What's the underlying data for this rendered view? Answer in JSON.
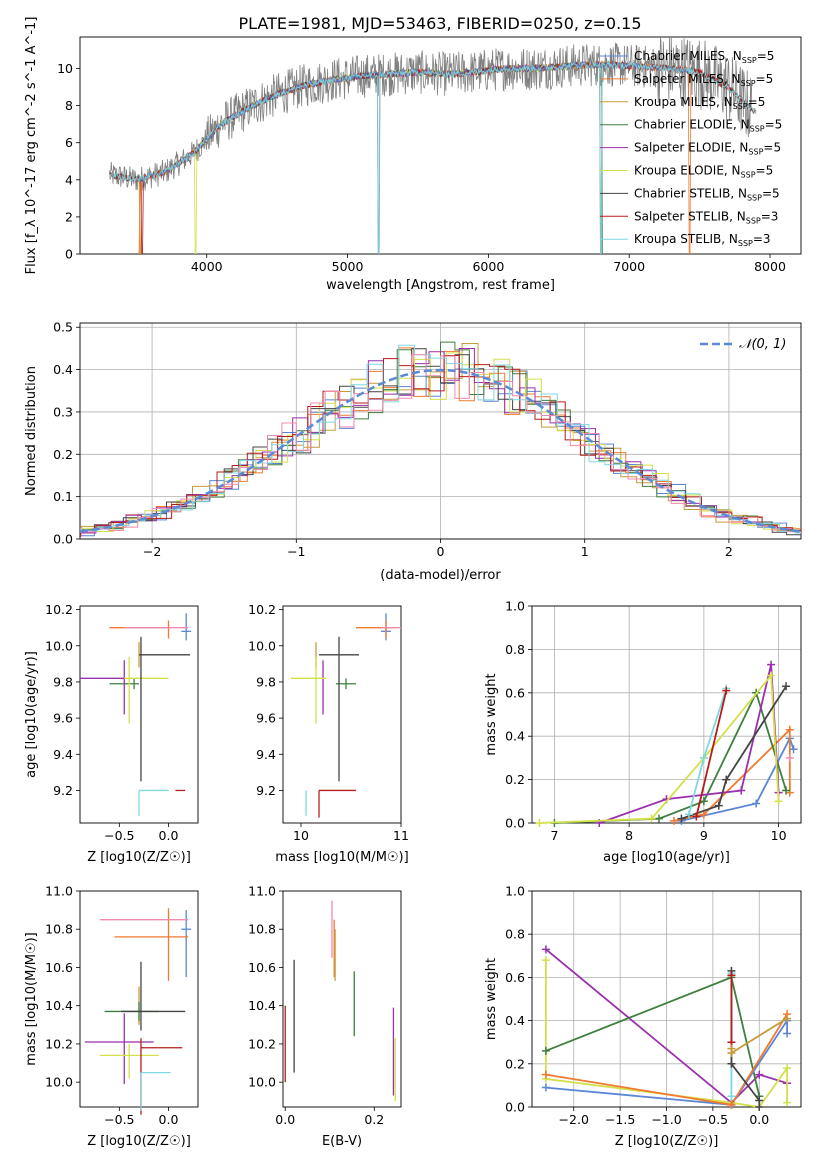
{
  "figure_title": "PLATE=1981, MJD=53463, FIBERID=0250, z=0.15",
  "colors": {
    "Chabrier MILES": "#5b86d6",
    "Salpeter MILES": "#f07a30",
    "Kroupa MILES": "#c89a3a",
    "Chabrier ELODIE": "#3f7f3f",
    "Salpeter ELODIE": "#9b2fae",
    "Kroupa ELODIE": "#d4e04a",
    "Chabrier STELIB": "#444444",
    "Salpeter STELIB": "#b71c1c",
    "Kroupa STELIB": "#7fd8e0",
    "data": "#808080",
    "pink": "#f28ab0",
    "normal_curve": "#5b8bd6"
  },
  "chart_data": [
    {
      "id": "spectrum",
      "type": "line",
      "title": "PLATE=1981, MJD=53463, FIBERID=0250, z=0.15",
      "xlabel": "wavelength [Angstrom, rest frame]",
      "ylabel": "Flux [f_λ 10^-17 erg cm^-2 s^-1 A^-1]",
      "xlim": [
        3100,
        8220
      ],
      "ylim": [
        0,
        11.7
      ],
      "xticks": [
        "4000",
        "5000",
        "6000",
        "7000",
        "8000"
      ],
      "yticks": [
        "0",
        "2",
        "4",
        "6",
        "8",
        "10"
      ],
      "legend_position": "right",
      "series": [
        {
          "name": "Chabrier MILES, N_SSP=5"
        },
        {
          "name": "Salpeter MILES, N_SSP=5"
        },
        {
          "name": "Kroupa MILES, N_SSP=5"
        },
        {
          "name": "Chabrier ELODIE, N_SSP=5"
        },
        {
          "name": "Salpeter ELODIE, N_SSP=5"
        },
        {
          "name": "Kroupa ELODIE, N_SSP=5"
        },
        {
          "name": "Chabrier STELIB, N_SSP=5"
        },
        {
          "name": "Salpeter STELIB, N_SSP=3"
        },
        {
          "name": "Kroupa STELIB, N_SSP=3"
        }
      ],
      "continuum": {
        "x": [
          3300,
          3500,
          3700,
          3900,
          4100,
          4300,
          4500,
          4700,
          4900,
          5100,
          5300,
          5500,
          5700,
          5900,
          6100,
          6300,
          6500,
          6700,
          6900,
          7100,
          7300,
          7500,
          7700,
          7900
        ],
        "y": [
          4.3,
          4.0,
          4.4,
          5.4,
          7.0,
          7.9,
          8.6,
          9.1,
          9.4,
          9.6,
          9.7,
          9.8,
          9.7,
          9.8,
          10.0,
          10.0,
          10.1,
          10.2,
          10.2,
          10.1,
          10.0,
          9.8,
          9.0,
          7.6
        ]
      }
    },
    {
      "id": "residuals",
      "type": "line",
      "xlabel": "(data-model)/error",
      "ylabel": "Normed distribution",
      "xlim": [
        -2.5,
        2.5
      ],
      "ylim": [
        0,
        0.51
      ],
      "xticks": [
        "−2",
        "−1",
        "0",
        "1",
        "2"
      ],
      "yticks": [
        "0.0",
        "0.1",
        "0.2",
        "0.3",
        "0.4",
        "0.5"
      ],
      "grid": true,
      "legend": "𝒩(0, 1)",
      "legend_position": "upper right"
    },
    {
      "id": "age_vs_Z",
      "type": "scatter",
      "xlabel": "Z [log10(Z/Z☉)]",
      "ylabel": "age [log10(age/yr)]",
      "xlim": [
        -0.9,
        0.3
      ],
      "ylim": [
        9.02,
        10.22
      ],
      "xticks": [
        "−0.5",
        "0.0"
      ],
      "yticks": [
        "9.2",
        "9.4",
        "9.6",
        "9.8",
        "10.0",
        "10.2"
      ],
      "points": [
        {
          "s": "Chabrier MILES",
          "x": 0.18,
          "y": 10.08,
          "ex": [
            0.05,
            0.05
          ],
          "ey": [
            0.05,
            0.1
          ]
        },
        {
          "s": "Salpeter MILES",
          "x": 0.0,
          "y": 10.1,
          "ex": [
            0.6,
            0.0
          ],
          "ey": [
            0.06,
            0.04
          ]
        },
        {
          "s": "Kroupa MILES",
          "x": -0.3,
          "y": 9.98,
          "ex": [
            0.0,
            0.0
          ],
          "ey": [
            0.1,
            0.04
          ]
        },
        {
          "s": "Chabrier ELODIE",
          "x": -0.35,
          "y": 9.79,
          "ex": [
            0.25,
            0.05
          ],
          "ey": [
            0.03,
            0.03
          ]
        },
        {
          "s": "Salpeter ELODIE",
          "x": -0.45,
          "y": 9.82,
          "ex": [
            0.45,
            0.0
          ],
          "ey": [
            0.2,
            0.1
          ]
        },
        {
          "s": "Kroupa ELODIE",
          "x": -0.4,
          "y": 9.82,
          "ex": [
            0.05,
            0.4
          ],
          "ey": [
            0.25,
            0.12
          ]
        },
        {
          "s": "Chabrier STELIB",
          "x": -0.28,
          "y": 9.95,
          "ex": [
            0.02,
            0.5
          ],
          "ey": [
            0.7,
            0.1
          ]
        },
        {
          "s": "Salpeter STELIB",
          "x": 0.12,
          "y": 9.2,
          "ex": [
            0.05,
            0.05
          ],
          "ey": [
            0.0,
            0.0
          ]
        },
        {
          "s": "Kroupa STELIB",
          "x": -0.3,
          "y": 9.2,
          "ex": [
            0.0,
            0.3
          ],
          "ey": [
            0.14,
            0.0
          ]
        },
        {
          "s": "pink",
          "x": -0.1,
          "y": 10.1,
          "ex": [
            0.35,
            0.3
          ],
          "ey": [
            0.0,
            0.0
          ]
        }
      ]
    },
    {
      "id": "age_vs_mass",
      "type": "scatter",
      "xlabel": "mass [log10(M/M☉)]",
      "ylabel": "",
      "xlim": [
        9.82,
        11.0
      ],
      "ylim": [
        9.02,
        10.22
      ],
      "xticks": [
        "10",
        "11"
      ],
      "yticks": [
        "9.2",
        "9.4",
        "9.6",
        "9.8",
        "10.0",
        "10.2"
      ],
      "points": [
        {
          "s": "Chabrier MILES",
          "x": 10.85,
          "y": 10.08,
          "ex": [
            0.05,
            0.05
          ],
          "ey": [
            0.05,
            0.1
          ]
        },
        {
          "s": "Salpeter MILES",
          "x": 10.85,
          "y": 10.1,
          "ex": [
            0.3,
            0.1
          ],
          "ey": [
            0.06,
            0.04
          ]
        },
        {
          "s": "Kroupa MILES",
          "x": 10.15,
          "y": 9.98,
          "ex": [
            0.0,
            0.0
          ],
          "ey": [
            0.1,
            0.04
          ]
        },
        {
          "s": "Chabrier ELODIE",
          "x": 10.45,
          "y": 9.79,
          "ex": [
            0.1,
            0.1
          ],
          "ey": [
            0.03,
            0.03
          ]
        },
        {
          "s": "Salpeter ELODIE",
          "x": 10.22,
          "y": 9.82,
          "ex": [
            0.0,
            0.0
          ],
          "ey": [
            0.2,
            0.1
          ]
        },
        {
          "s": "Kroupa ELODIE",
          "x": 10.15,
          "y": 9.82,
          "ex": [
            0.25,
            0.1
          ],
          "ey": [
            0.25,
            0.12
          ]
        },
        {
          "s": "Chabrier STELIB",
          "x": 10.38,
          "y": 9.95,
          "ex": [
            0.2,
            0.2
          ],
          "ey": [
            0.7,
            0.1
          ]
        },
        {
          "s": "Salpeter STELIB",
          "x": 10.18,
          "y": 9.2,
          "ex": [
            0.0,
            0.37
          ],
          "ey": [
            0.15,
            0.0
          ]
        },
        {
          "s": "Kroupa STELIB",
          "x": 10.05,
          "y": 9.2,
          "ex": [
            0.0,
            0.0
          ],
          "ey": [
            0.14,
            0.0
          ]
        },
        {
          "s": "pink",
          "x": 10.8,
          "y": 10.1,
          "ex": [
            0.0,
            0.2
          ],
          "ey": [
            0.0,
            0.0
          ]
        }
      ]
    },
    {
      "id": "weight_vs_age",
      "type": "line",
      "xlabel": "age [log10(age/yr)]",
      "ylabel": "mass weight",
      "xlim": [
        6.7,
        10.3
      ],
      "ylim": [
        0,
        1.0
      ],
      "xticks": [
        "7",
        "8",
        "9",
        "10"
      ],
      "yticks": [
        "0.0",
        "0.2",
        "0.4",
        "0.6",
        "0.8",
        "1.0"
      ],
      "grid": true,
      "series": [
        {
          "s": "Chabrier MILES",
          "x": [
            8.7,
            9.7,
            10.15,
            10.2
          ],
          "y": [
            0.01,
            0.09,
            0.39,
            0.34
          ]
        },
        {
          "s": "Salpeter MILES",
          "x": [
            8.6,
            9.0,
            10.15,
            10.15
          ],
          "y": [
            0.01,
            0.04,
            0.43,
            0.14
          ]
        },
        {
          "s": "Chabrier ELODIE",
          "x": [
            7.0,
            8.4,
            9.0,
            9.7,
            10.1
          ],
          "y": [
            0.0,
            0.02,
            0.1,
            0.6,
            0.15
          ]
        },
        {
          "s": "Salpeter ELODIE",
          "x": [
            7.6,
            8.5,
            9.5,
            9.9,
            10.0
          ],
          "y": [
            0.0,
            0.11,
            0.15,
            0.73,
            0.14
          ]
        },
        {
          "s": "Kroupa ELODIE",
          "x": [
            6.8,
            8.3,
            9.0,
            9.9,
            10.0
          ],
          "y": [
            0.0,
            0.02,
            0.3,
            0.68,
            0.1
          ]
        },
        {
          "s": "Chabrier STELIB",
          "x": [
            8.7,
            9.2,
            9.3,
            10.1
          ],
          "y": [
            0.02,
            0.08,
            0.2,
            0.63
          ]
        },
        {
          "s": "Kroupa STELIB",
          "x": [
            8.8,
            9.0,
            9.3
          ],
          "y": [
            0.04,
            0.3,
            0.62
          ]
        },
        {
          "s": "Salpeter STELIB",
          "x": [
            8.9,
            9.3
          ],
          "y": [
            0.03,
            0.61
          ]
        },
        {
          "s": "pink",
          "x": [
            10.15
          ],
          "y": [
            0.3
          ]
        }
      ]
    },
    {
      "id": "mass_vs_Z",
      "type": "scatter",
      "xlabel": "Z [log10(Z/Z☉)]",
      "ylabel": "mass [log10(M/M☉)]",
      "xlim": [
        -0.9,
        0.3
      ],
      "ylim": [
        9.87,
        11.0
      ],
      "xticks": [
        "−0.5",
        "0.0"
      ],
      "yticks": [
        "10.0",
        "10.2",
        "10.4",
        "10.6",
        "10.8",
        "11.0"
      ],
      "points": [
        {
          "s": "Chabrier MILES",
          "x": 0.18,
          "y": 10.8,
          "ex": [
            0.05,
            0.05
          ],
          "ey": [
            0.25,
            0.1
          ]
        },
        {
          "s": "Salpeter MILES",
          "x": 0.0,
          "y": 10.76,
          "ex": [
            0.55,
            0.2
          ],
          "ey": [
            0.23,
            0.15
          ]
        },
        {
          "s": "Kroupa MILES",
          "x": -0.3,
          "y": 10.4,
          "ex": [
            0.0,
            0.0
          ],
          "ey": [
            0.1,
            0.1
          ]
        },
        {
          "s": "Chabrier ELODIE",
          "x": -0.3,
          "y": 10.37,
          "ex": [
            0.35,
            0.2
          ],
          "ey": [
            0.05,
            0.05
          ]
        },
        {
          "s": "Salpeter ELODIE",
          "x": -0.45,
          "y": 10.21,
          "ex": [
            0.4,
            0.3
          ],
          "ey": [
            0.22,
            0.15
          ]
        },
        {
          "s": "Kroupa ELODIE",
          "x": -0.4,
          "y": 10.14,
          "ex": [
            0.3,
            0.3
          ],
          "ey": [
            0.12,
            0.06
          ]
        },
        {
          "s": "Chabrier STELIB",
          "x": -0.28,
          "y": 10.37,
          "ex": [
            0.2,
            0.45
          ],
          "ey": [
            0.1,
            0.26
          ]
        },
        {
          "s": "Salpeter STELIB",
          "x": -0.28,
          "y": 10.18,
          "ex": [
            0.0,
            0.42
          ],
          "ey": [
            0.35,
            0.05
          ]
        },
        {
          "s": "Kroupa STELIB",
          "x": -0.28,
          "y": 10.05,
          "ex": [
            0.0,
            0.3
          ],
          "ey": [
            0.2,
            0.0
          ]
        },
        {
          "s": "pink",
          "x": -0.1,
          "y": 10.85,
          "ex": [
            0.6,
            0.3
          ],
          "ey": [
            0.0,
            0.0
          ]
        }
      ]
    },
    {
      "id": "mass_vs_EBV",
      "type": "scatter",
      "xlabel": "E(B-V)",
      "ylabel": "",
      "xlim": [
        -0.005,
        0.26
      ],
      "ylim": [
        9.87,
        11.0
      ],
      "xticks": [
        "0.0",
        "0.2"
      ],
      "yticks": [
        "10.0",
        "10.2",
        "10.4",
        "10.6",
        "10.8",
        "11.0"
      ],
      "bars": [
        {
          "s": "Salpeter STELIB",
          "x": 0.0,
          "y0": 10.0,
          "y1": 10.4
        },
        {
          "s": "Chabrier STELIB",
          "x": 0.02,
          "y0": 10.05,
          "y1": 10.64
        },
        {
          "s": "pink",
          "x": 0.105,
          "y0": 10.65,
          "y1": 10.95
        },
        {
          "s": "Salpeter MILES",
          "x": 0.11,
          "y0": 10.55,
          "y1": 10.85
        },
        {
          "s": "Kroupa MILES",
          "x": 0.112,
          "y0": 10.53,
          "y1": 10.8
        },
        {
          "s": "Chabrier ELODIE",
          "x": 0.155,
          "y0": 10.24,
          "y1": 10.58
        },
        {
          "s": "Salpeter ELODIE",
          "x": 0.243,
          "y0": 9.93,
          "y1": 10.39
        },
        {
          "s": "Kroupa ELODIE",
          "x": 0.247,
          "y0": 9.9,
          "y1": 10.23
        }
      ]
    },
    {
      "id": "weight_vs_Z",
      "type": "line",
      "xlabel": "Z [log10(Z/Z☉)]",
      "ylabel": "mass weight",
      "xlim": [
        -2.45,
        0.45
      ],
      "ylim": [
        0,
        1.0
      ],
      "xticks": [
        "−2.0",
        "−1.5",
        "−1.0",
        "−0.5",
        "0.0"
      ],
      "yticks": [
        "0.0",
        "0.2",
        "0.4",
        "0.6",
        "0.8",
        "1.0"
      ],
      "grid": true,
      "series": [
        {
          "s": "Salpeter ELODIE",
          "x": [
            -2.3,
            -0.3,
            0.0,
            0.3
          ],
          "y": [
            0.73,
            0.02,
            0.15,
            0.11
          ]
        },
        {
          "s": "Kroupa ELODIE",
          "x": [
            -2.3,
            -2.3,
            -0.3,
            0.0,
            0.3,
            0.3
          ],
          "y": [
            0.68,
            0.13,
            0.02,
            0.0,
            0.18,
            0.02
          ]
        },
        {
          "s": "Chabrier ELODIE",
          "x": [
            -2.3,
            -0.3,
            0.0
          ],
          "y": [
            0.26,
            0.6,
            0.05
          ]
        },
        {
          "s": "Chabrier MILES",
          "x": [
            -2.3,
            -0.3,
            0.3,
            0.3
          ],
          "y": [
            0.09,
            0.01,
            0.4,
            0.34
          ]
        },
        {
          "s": "Salpeter MILES",
          "x": [
            -2.3,
            -0.3,
            0.3
          ],
          "y": [
            0.15,
            0.01,
            0.43
          ]
        },
        {
          "s": "Kroupa STELIB",
          "x": [
            -0.3,
            -0.3,
            -0.3
          ],
          "y": [
            0.62,
            0.3,
            0.05
          ]
        },
        {
          "s": "Chabrier STELIB",
          "x": [
            -0.3,
            -0.3,
            0.0,
            0.0
          ],
          "y": [
            0.63,
            0.2,
            0.03,
            0.0
          ]
        },
        {
          "s": "Salpeter STELIB",
          "x": [
            -0.3,
            -0.3
          ],
          "y": [
            0.61,
            0.3
          ]
        },
        {
          "s": "Kroupa MILES",
          "x": [
            -0.3,
            -0.3,
            0.3
          ],
          "y": [
            0.27,
            0.25,
            0.41
          ]
        }
      ]
    }
  ]
}
